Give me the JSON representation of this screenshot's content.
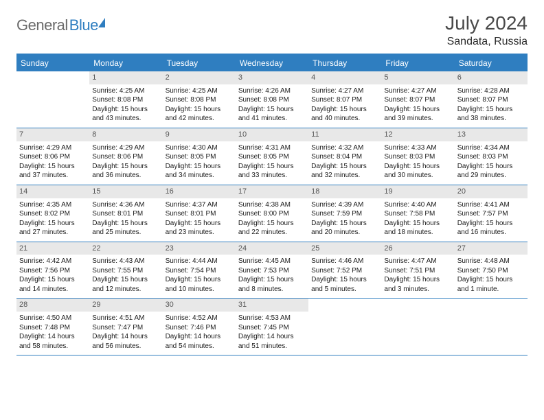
{
  "logo": {
    "part1": "General",
    "part2": "Blue"
  },
  "header": {
    "title": "July 2024",
    "location": "Sandata, Russia"
  },
  "colors": {
    "accent": "#2f7ec0",
    "header_text": "#ffffff",
    "daynum_bg": "#e8e8e8",
    "body_bg": "#ffffff",
    "logo_gray": "#6b6b6b"
  },
  "day_names": [
    "Sunday",
    "Monday",
    "Tuesday",
    "Wednesday",
    "Thursday",
    "Friday",
    "Saturday"
  ],
  "weeks": [
    [
      null,
      {
        "n": "1",
        "sunrise": "Sunrise: 4:25 AM",
        "sunset": "Sunset: 8:08 PM",
        "d1": "Daylight: 15 hours",
        "d2": "and 43 minutes."
      },
      {
        "n": "2",
        "sunrise": "Sunrise: 4:25 AM",
        "sunset": "Sunset: 8:08 PM",
        "d1": "Daylight: 15 hours",
        "d2": "and 42 minutes."
      },
      {
        "n": "3",
        "sunrise": "Sunrise: 4:26 AM",
        "sunset": "Sunset: 8:08 PM",
        "d1": "Daylight: 15 hours",
        "d2": "and 41 minutes."
      },
      {
        "n": "4",
        "sunrise": "Sunrise: 4:27 AM",
        "sunset": "Sunset: 8:07 PM",
        "d1": "Daylight: 15 hours",
        "d2": "and 40 minutes."
      },
      {
        "n": "5",
        "sunrise": "Sunrise: 4:27 AM",
        "sunset": "Sunset: 8:07 PM",
        "d1": "Daylight: 15 hours",
        "d2": "and 39 minutes."
      },
      {
        "n": "6",
        "sunrise": "Sunrise: 4:28 AM",
        "sunset": "Sunset: 8:07 PM",
        "d1": "Daylight: 15 hours",
        "d2": "and 38 minutes."
      }
    ],
    [
      {
        "n": "7",
        "sunrise": "Sunrise: 4:29 AM",
        "sunset": "Sunset: 8:06 PM",
        "d1": "Daylight: 15 hours",
        "d2": "and 37 minutes."
      },
      {
        "n": "8",
        "sunrise": "Sunrise: 4:29 AM",
        "sunset": "Sunset: 8:06 PM",
        "d1": "Daylight: 15 hours",
        "d2": "and 36 minutes."
      },
      {
        "n": "9",
        "sunrise": "Sunrise: 4:30 AM",
        "sunset": "Sunset: 8:05 PM",
        "d1": "Daylight: 15 hours",
        "d2": "and 34 minutes."
      },
      {
        "n": "10",
        "sunrise": "Sunrise: 4:31 AM",
        "sunset": "Sunset: 8:05 PM",
        "d1": "Daylight: 15 hours",
        "d2": "and 33 minutes."
      },
      {
        "n": "11",
        "sunrise": "Sunrise: 4:32 AM",
        "sunset": "Sunset: 8:04 PM",
        "d1": "Daylight: 15 hours",
        "d2": "and 32 minutes."
      },
      {
        "n": "12",
        "sunrise": "Sunrise: 4:33 AM",
        "sunset": "Sunset: 8:03 PM",
        "d1": "Daylight: 15 hours",
        "d2": "and 30 minutes."
      },
      {
        "n": "13",
        "sunrise": "Sunrise: 4:34 AM",
        "sunset": "Sunset: 8:03 PM",
        "d1": "Daylight: 15 hours",
        "d2": "and 29 minutes."
      }
    ],
    [
      {
        "n": "14",
        "sunrise": "Sunrise: 4:35 AM",
        "sunset": "Sunset: 8:02 PM",
        "d1": "Daylight: 15 hours",
        "d2": "and 27 minutes."
      },
      {
        "n": "15",
        "sunrise": "Sunrise: 4:36 AM",
        "sunset": "Sunset: 8:01 PM",
        "d1": "Daylight: 15 hours",
        "d2": "and 25 minutes."
      },
      {
        "n": "16",
        "sunrise": "Sunrise: 4:37 AM",
        "sunset": "Sunset: 8:01 PM",
        "d1": "Daylight: 15 hours",
        "d2": "and 23 minutes."
      },
      {
        "n": "17",
        "sunrise": "Sunrise: 4:38 AM",
        "sunset": "Sunset: 8:00 PM",
        "d1": "Daylight: 15 hours",
        "d2": "and 22 minutes."
      },
      {
        "n": "18",
        "sunrise": "Sunrise: 4:39 AM",
        "sunset": "Sunset: 7:59 PM",
        "d1": "Daylight: 15 hours",
        "d2": "and 20 minutes."
      },
      {
        "n": "19",
        "sunrise": "Sunrise: 4:40 AM",
        "sunset": "Sunset: 7:58 PM",
        "d1": "Daylight: 15 hours",
        "d2": "and 18 minutes."
      },
      {
        "n": "20",
        "sunrise": "Sunrise: 4:41 AM",
        "sunset": "Sunset: 7:57 PM",
        "d1": "Daylight: 15 hours",
        "d2": "and 16 minutes."
      }
    ],
    [
      {
        "n": "21",
        "sunrise": "Sunrise: 4:42 AM",
        "sunset": "Sunset: 7:56 PM",
        "d1": "Daylight: 15 hours",
        "d2": "and 14 minutes."
      },
      {
        "n": "22",
        "sunrise": "Sunrise: 4:43 AM",
        "sunset": "Sunset: 7:55 PM",
        "d1": "Daylight: 15 hours",
        "d2": "and 12 minutes."
      },
      {
        "n": "23",
        "sunrise": "Sunrise: 4:44 AM",
        "sunset": "Sunset: 7:54 PM",
        "d1": "Daylight: 15 hours",
        "d2": "and 10 minutes."
      },
      {
        "n": "24",
        "sunrise": "Sunrise: 4:45 AM",
        "sunset": "Sunset: 7:53 PM",
        "d1": "Daylight: 15 hours",
        "d2": "and 8 minutes."
      },
      {
        "n": "25",
        "sunrise": "Sunrise: 4:46 AM",
        "sunset": "Sunset: 7:52 PM",
        "d1": "Daylight: 15 hours",
        "d2": "and 5 minutes."
      },
      {
        "n": "26",
        "sunrise": "Sunrise: 4:47 AM",
        "sunset": "Sunset: 7:51 PM",
        "d1": "Daylight: 15 hours",
        "d2": "and 3 minutes."
      },
      {
        "n": "27",
        "sunrise": "Sunrise: 4:48 AM",
        "sunset": "Sunset: 7:50 PM",
        "d1": "Daylight: 15 hours",
        "d2": "and 1 minute."
      }
    ],
    [
      {
        "n": "28",
        "sunrise": "Sunrise: 4:50 AM",
        "sunset": "Sunset: 7:48 PM",
        "d1": "Daylight: 14 hours",
        "d2": "and 58 minutes."
      },
      {
        "n": "29",
        "sunrise": "Sunrise: 4:51 AM",
        "sunset": "Sunset: 7:47 PM",
        "d1": "Daylight: 14 hours",
        "d2": "and 56 minutes."
      },
      {
        "n": "30",
        "sunrise": "Sunrise: 4:52 AM",
        "sunset": "Sunset: 7:46 PM",
        "d1": "Daylight: 14 hours",
        "d2": "and 54 minutes."
      },
      {
        "n": "31",
        "sunrise": "Sunrise: 4:53 AM",
        "sunset": "Sunset: 7:45 PM",
        "d1": "Daylight: 14 hours",
        "d2": "and 51 minutes."
      },
      null,
      null,
      null
    ]
  ]
}
